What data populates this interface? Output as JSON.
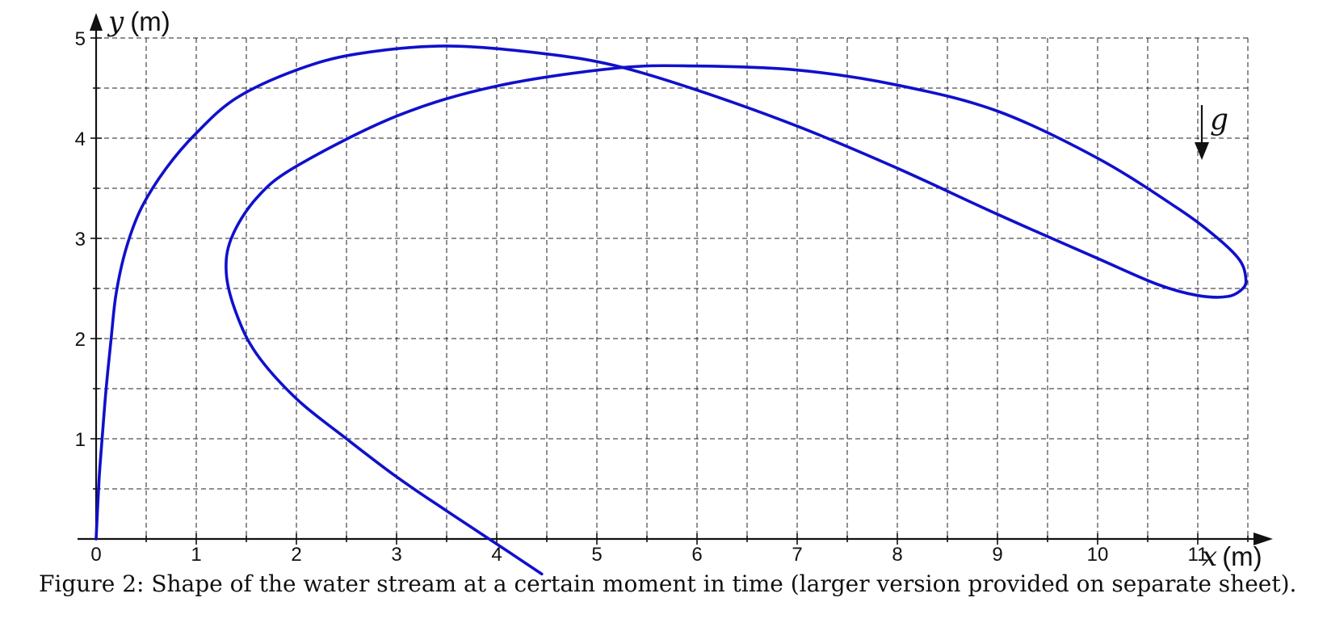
{
  "chart_data": {
    "type": "line",
    "title": "",
    "xlabel": {
      "symbol": "x",
      "unit": "(m)"
    },
    "ylabel": {
      "symbol": "y",
      "unit": "(m)"
    },
    "xlim": [
      0,
      11.5
    ],
    "ylim": [
      0,
      5
    ],
    "x_ticks": [
      "0",
      "1",
      "2",
      "3",
      "4",
      "5",
      "6",
      "7",
      "8",
      "9",
      "10",
      "11"
    ],
    "y_ticks": [
      "1",
      "2",
      "3",
      "4",
      "5"
    ],
    "grid": {
      "visible": true,
      "style": "dashed",
      "step": 0.5
    },
    "gravity_label": "g",
    "series": [
      {
        "color": "#1010cc",
        "points": [
          [
            0.0,
            0.0
          ],
          [
            0.03,
            0.6
          ],
          [
            0.06,
            1.0
          ],
          [
            0.1,
            1.5
          ],
          [
            0.15,
            2.0
          ],
          [
            0.2,
            2.45
          ],
          [
            0.3,
            2.9
          ],
          [
            0.45,
            3.3
          ],
          [
            0.7,
            3.7
          ],
          [
            1.0,
            4.05
          ],
          [
            1.4,
            4.4
          ],
          [
            2.0,
            4.68
          ],
          [
            2.6,
            4.84
          ],
          [
            3.5,
            4.92
          ],
          [
            4.5,
            4.84
          ],
          [
            5.2,
            4.72
          ],
          [
            6.0,
            4.48
          ],
          [
            7.0,
            4.12
          ],
          [
            8.0,
            3.7
          ],
          [
            9.0,
            3.24
          ],
          [
            10.0,
            2.8
          ],
          [
            10.6,
            2.54
          ],
          [
            11.0,
            2.43
          ],
          [
            11.3,
            2.42
          ],
          [
            11.45,
            2.5
          ],
          [
            11.48,
            2.6
          ],
          [
            11.42,
            2.78
          ],
          [
            11.2,
            3.0
          ],
          [
            10.8,
            3.3
          ],
          [
            10.0,
            3.8
          ],
          [
            9.0,
            4.27
          ],
          [
            8.0,
            4.53
          ],
          [
            7.0,
            4.68
          ],
          [
            6.0,
            4.72
          ],
          [
            5.2,
            4.7
          ],
          [
            4.0,
            4.52
          ],
          [
            3.0,
            4.22
          ],
          [
            2.0,
            3.72
          ],
          [
            1.6,
            3.4
          ],
          [
            1.35,
            3.0
          ],
          [
            1.3,
            2.65
          ],
          [
            1.4,
            2.25
          ],
          [
            1.6,
            1.85
          ],
          [
            2.0,
            1.4
          ],
          [
            2.5,
            1.0
          ],
          [
            3.0,
            0.62
          ],
          [
            3.5,
            0.28
          ],
          [
            4.0,
            -0.05
          ],
          [
            4.45,
            -0.35
          ]
        ]
      }
    ]
  },
  "caption": "Figure 2: Shape of the water stream at a certain moment in time (larger version provided on separate sheet)."
}
